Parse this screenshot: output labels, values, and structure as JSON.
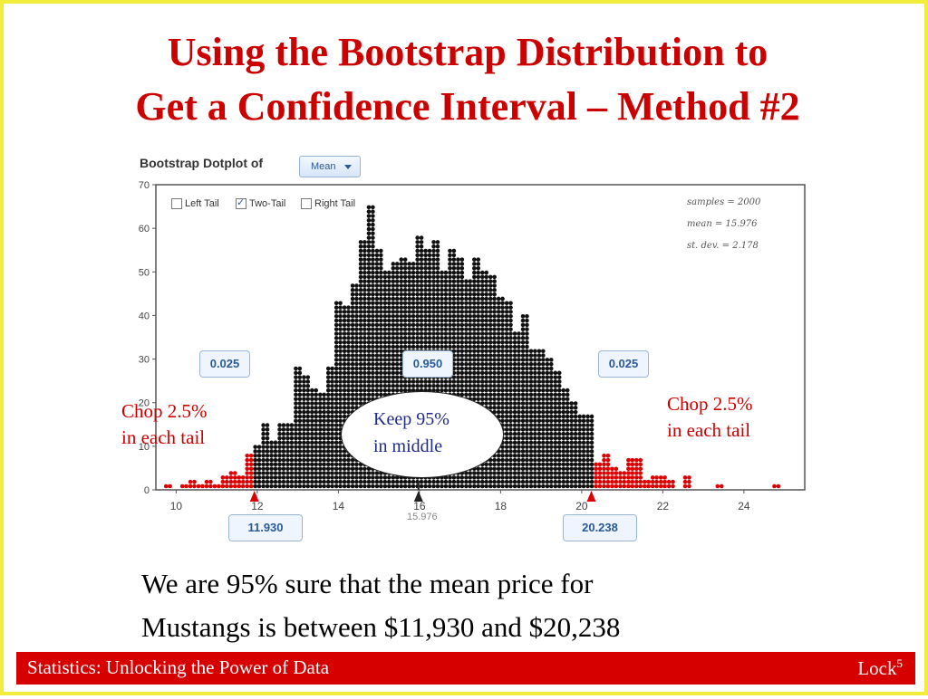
{
  "title": {
    "line1": "Using the Bootstrap Distribution to",
    "line2": "Get a Confidence Interval – Method #2"
  },
  "plot_header": {
    "label": "Bootstrap Dotplot of",
    "dropdown_value": "Mean"
  },
  "tail_options": {
    "left": {
      "label": "Left Tail",
      "checked": false
    },
    "two": {
      "label": "Two-Tail",
      "checked": true
    },
    "right": {
      "label": "Right Tail",
      "checked": false
    }
  },
  "summary_stats": {
    "samples": "samples = 2000",
    "mean": "mean = 15.976",
    "sd": "st. dev. = 2.178"
  },
  "proportions": {
    "left": "0.025",
    "middle": "0.950",
    "right": "0.025"
  },
  "bounds": {
    "lower": "11.930",
    "upper": "20.238",
    "mean_marker": "15.976"
  },
  "annotations": {
    "left_line1": "Chop 2.5%",
    "left_line2": "in each tail",
    "right_line1": "Chop 2.5%",
    "right_line2": "in each tail",
    "middle_line1": "Keep 95%",
    "middle_line2": "in middle"
  },
  "conclusion": {
    "line1": "We are 95% sure that the mean price for",
    "line2": "Mustangs is between $11,930 and $20,238"
  },
  "footer": {
    "left": "Statistics: Unlocking the Power of Data",
    "right": "Lock",
    "right_sup": "5"
  },
  "colors": {
    "title": "#cc0000",
    "dots_inside": "#111111",
    "dots_tail": "#dd0000",
    "footer_bg": "#d60000",
    "border": "#f2ec3c",
    "middle_text": "#1f2a8a"
  },
  "chart_data": {
    "type": "dotplot",
    "ylim": [
      0,
      70
    ],
    "xlim": [
      9.5,
      25.5
    ],
    "y_ticks": [
      0,
      10,
      20,
      30,
      40,
      50,
      60,
      70
    ],
    "x_ticks": [
      10,
      12,
      14,
      16,
      18,
      20,
      22,
      24
    ],
    "bin_width": 0.2,
    "lower_bound": 11.93,
    "upper_bound": 20.238,
    "mean": 15.976,
    "bins": [
      [
        9.8,
        1
      ],
      [
        10.2,
        1
      ],
      [
        10.4,
        2
      ],
      [
        10.6,
        1
      ],
      [
        10.8,
        2
      ],
      [
        11.0,
        1
      ],
      [
        11.2,
        3
      ],
      [
        11.4,
        4
      ],
      [
        11.6,
        3
      ],
      [
        11.8,
        8
      ],
      [
        12.0,
        10
      ],
      [
        12.2,
        15
      ],
      [
        12.4,
        11
      ],
      [
        12.6,
        15
      ],
      [
        12.8,
        15
      ],
      [
        13.0,
        28
      ],
      [
        13.2,
        26
      ],
      [
        13.4,
        23
      ],
      [
        13.6,
        22
      ],
      [
        13.8,
        28
      ],
      [
        14.0,
        43
      ],
      [
        14.2,
        42
      ],
      [
        14.4,
        47
      ],
      [
        14.6,
        57
      ],
      [
        14.8,
        65
      ],
      [
        15.0,
        55
      ],
      [
        15.2,
        50
      ],
      [
        15.4,
        52
      ],
      [
        15.6,
        53
      ],
      [
        15.8,
        52
      ],
      [
        16.0,
        58
      ],
      [
        16.2,
        55
      ],
      [
        16.4,
        57
      ],
      [
        16.6,
        50
      ],
      [
        16.8,
        55
      ],
      [
        17.0,
        53
      ],
      [
        17.2,
        48
      ],
      [
        17.4,
        53
      ],
      [
        17.6,
        50
      ],
      [
        17.8,
        49
      ],
      [
        18.0,
        44
      ],
      [
        18.2,
        43
      ],
      [
        18.4,
        36
      ],
      [
        18.6,
        40
      ],
      [
        18.8,
        32
      ],
      [
        19.0,
        32
      ],
      [
        19.2,
        30
      ],
      [
        19.4,
        27
      ],
      [
        19.6,
        23
      ],
      [
        19.8,
        20
      ],
      [
        20.0,
        17
      ],
      [
        20.2,
        17
      ],
      [
        20.4,
        6
      ],
      [
        20.6,
        8
      ],
      [
        20.8,
        5
      ],
      [
        21.0,
        4
      ],
      [
        21.2,
        7
      ],
      [
        21.4,
        7
      ],
      [
        21.6,
        2
      ],
      [
        21.8,
        3
      ],
      [
        22.0,
        3
      ],
      [
        22.2,
        2
      ],
      [
        22.6,
        3
      ],
      [
        23.4,
        1
      ],
      [
        24.8,
        1
      ]
    ]
  }
}
